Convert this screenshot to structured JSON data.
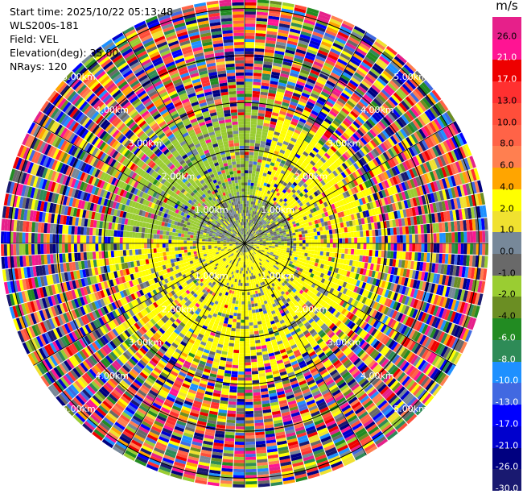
{
  "header": {
    "start_time": "Start time: 2025/10/22 05:13:48",
    "instrument": "WLS200s-181",
    "field": "Field: VEL",
    "elevation": "Elevation(deg): 35.00",
    "nrays": "NRays: 120"
  },
  "colorbar": {
    "unit": "m/s",
    "entries": [
      {
        "label": "26.0",
        "color": "#e6208a"
      },
      {
        "label": "21.0",
        "color": "#ff1493"
      },
      {
        "label": "17.0",
        "color": "#ee0000"
      },
      {
        "label": "13.0",
        "color": "#ff3030"
      },
      {
        "label": "10.0",
        "color": "#ff4e3a"
      },
      {
        "label": "8.0",
        "color": "#ff6347"
      },
      {
        "label": "6.0",
        "color": "#ff7f50"
      },
      {
        "label": "4.0",
        "color": "#ffa500"
      },
      {
        "label": "2.0",
        "color": "#ffff00"
      },
      {
        "label": "1.0",
        "color": "#f0e130"
      },
      {
        "label": "0.0",
        "color": "#778899"
      },
      {
        "label": "-1.0",
        "color": "#696969"
      },
      {
        "label": "-2.0",
        "color": "#9acd32"
      },
      {
        "label": "-4.0",
        "color": "#6b8e23"
      },
      {
        "label": "-6.0",
        "color": "#228b22"
      },
      {
        "label": "-8.0",
        "color": "#2e8b57"
      },
      {
        "label": "-10.0",
        "color": "#1e90ff"
      },
      {
        "label": "-13.0",
        "color": "#4169e1"
      },
      {
        "label": "-17.0",
        "color": "#0000ff"
      },
      {
        "label": "-21.0",
        "color": "#0000cd"
      },
      {
        "label": "-26.0",
        "color": "#000080"
      },
      {
        "label": "-30.0",
        "color": "#191970"
      }
    ]
  },
  "chart_data": {
    "type": "heatmap",
    "projection": "polar (PPI)",
    "field": "VEL",
    "elevation_deg": 35.0,
    "n_rays": 120,
    "range_rings_km": [
      1,
      2,
      3,
      4,
      5
    ],
    "range_ring_labels": [
      "1.00km",
      "2.00km",
      "3.00km",
      "4.00km",
      "5.00km"
    ],
    "max_range_km": 5.2,
    "grid": true,
    "spoke_angles_deg": [
      0,
      30,
      60,
      90,
      120,
      150,
      180,
      210,
      240,
      270,
      300,
      330
    ],
    "pattern": {
      "inner_range_km": 1.0,
      "inner_field": "near-zero velocities (grey) mixed with -2 m/s (yellow-green)",
      "middle_range_km": [
        1.0,
        2.5
      ],
      "middle_field": "negative velocities (-2 m/s, yellow-green) to the north/west, positive (2 m/s, yellow) to the south/east",
      "outer_range_km": [
        2.5,
        5.2
      ],
      "outer_field": "noise, all velocity values mixed"
    }
  }
}
